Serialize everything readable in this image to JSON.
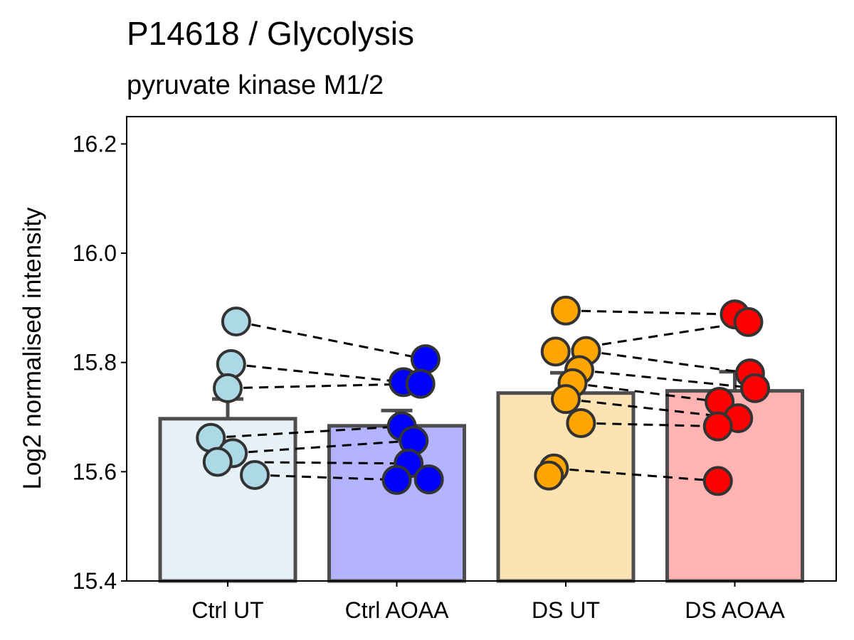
{
  "chart_data": {
    "type": "bar",
    "title": "P14618 / Glycolysis",
    "subtitle": "pyruvate kinase M1/2",
    "ylabel": "Log2 normalised intensity",
    "xlabel": "",
    "ylim": [
      15.4,
      16.25
    ],
    "yticks": [
      "15.4",
      "15.6",
      "15.8",
      "16.0",
      "16.2"
    ],
    "categories": [
      "Ctrl UT",
      "Ctrl AOAA",
      "DS UT",
      "DS AOAA"
    ],
    "bar_values": [
      15.697,
      15.684,
      15.744,
      15.748
    ],
    "error_upper": [
      15.733,
      15.712,
      15.781,
      15.783
    ],
    "bar_fill_colors": [
      "#E6F2F8",
      "#B3B3FF",
      "#FDE3B3",
      "#FFB3B3"
    ],
    "point_colors": [
      "#ADD8E6",
      "#0000FF",
      "#FFA500",
      "#FF0000"
    ],
    "series": [
      {
        "name": "Ctrl UT",
        "x_offsets": [
          0.05,
          0.02,
          0.0,
          -0.1,
          0.03,
          -0.06,
          0.16
        ],
        "values": [
          15.875,
          15.797,
          15.753,
          15.662,
          15.634,
          15.618,
          15.594
        ]
      },
      {
        "name": "Ctrl AOAA",
        "x_offsets": [
          0.17,
          0.04,
          0.14,
          0.03,
          0.1,
          0.07,
          0.0,
          0.19
        ],
        "values": [
          15.806,
          15.764,
          15.761,
          15.683,
          15.657,
          15.615,
          15.585,
          15.586
        ]
      },
      {
        "name": "DS UT",
        "x_offsets": [
          0.0,
          -0.06,
          0.12,
          0.08,
          0.04,
          0.0,
          0.09,
          -0.07,
          -0.1
        ],
        "values": [
          15.895,
          15.82,
          15.821,
          15.786,
          15.762,
          15.733,
          15.689,
          15.606,
          15.593
        ]
      },
      {
        "name": "DS AOAA",
        "x_offsets": [
          0.0,
          0.08,
          0.09,
          0.12,
          -0.09,
          0.02,
          -0.1,
          -0.1
        ],
        "values": [
          15.888,
          15.874,
          15.78,
          15.753,
          15.728,
          15.698,
          15.683,
          15.583
        ]
      }
    ],
    "paired_lines": [
      {
        "from": [
          0,
          0
        ],
        "to": [
          1,
          0
        ]
      },
      {
        "from": [
          0,
          1
        ],
        "to": [
          1,
          1
        ]
      },
      {
        "from": [
          0,
          2
        ],
        "to": [
          1,
          2
        ]
      },
      {
        "from": [
          0,
          3
        ],
        "to": [
          1,
          3
        ]
      },
      {
        "from": [
          0,
          4
        ],
        "to": [
          1,
          4
        ]
      },
      {
        "from": [
          0,
          5
        ],
        "to": [
          1,
          5
        ]
      },
      {
        "from": [
          0,
          6
        ],
        "to": [
          1,
          6
        ]
      },
      {
        "from": [
          2,
          0
        ],
        "to": [
          3,
          0
        ]
      },
      {
        "from": [
          2,
          1
        ],
        "to": [
          3,
          1
        ]
      },
      {
        "from": [
          2,
          2
        ],
        "to": [
          3,
          2
        ]
      },
      {
        "from": [
          2,
          3
        ],
        "to": [
          3,
          3
        ]
      },
      {
        "from": [
          2,
          4
        ],
        "to": [
          3,
          4
        ]
      },
      {
        "from": [
          2,
          5
        ],
        "to": [
          3,
          5
        ]
      },
      {
        "from": [
          2,
          6
        ],
        "to": [
          3,
          6
        ]
      },
      {
        "from": [
          2,
          7
        ],
        "to": [
          3,
          7
        ]
      }
    ],
    "grid": false,
    "legend": "none"
  }
}
